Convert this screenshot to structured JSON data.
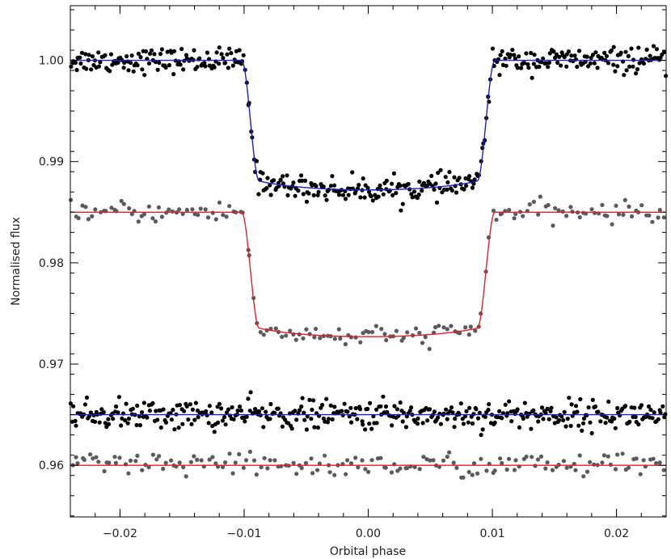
{
  "chart_data": {
    "type": "scatter",
    "title": "",
    "xlabel": "Orbital phase",
    "ylabel": "Normalised flux",
    "xlim": [
      -0.024,
      0.024
    ],
    "ylim": [
      0.9549,
      1.0054
    ],
    "grid": false,
    "legend": "none",
    "x_ticks": [
      -0.02,
      -0.01,
      0.0,
      0.01,
      0.02
    ],
    "x_tick_labels": [
      "−0.02",
      "−0.01",
      "0.00",
      "0.01",
      "0.02"
    ],
    "y_ticks": [
      0.96,
      0.97,
      0.98,
      0.99,
      1.0
    ],
    "y_tick_labels": [
      "0.96",
      "0.97",
      "0.98",
      "0.99",
      "1.00"
    ],
    "transit_model": {
      "half_width_phase": 0.0102,
      "full_depth_half_width_phase": 0.0088,
      "description_note": ""
    },
    "series": [
      {
        "kind": "light-curve",
        "baseline": 1.0,
        "depth": 0.0128,
        "scatter": 0.0006,
        "point_count": 420,
        "point_color": "#000000",
        "model_color": "#1f1fc8"
      },
      {
        "kind": "light-curve",
        "baseline": 0.985,
        "depth": 0.0123,
        "scatter": 0.0005,
        "point_count": 170,
        "point_color": "#5a5a5a",
        "model_color": "#e0202a"
      },
      {
        "kind": "residuals",
        "baseline": 0.965,
        "depth": 0.0,
        "scatter": 0.0007,
        "point_count": 420,
        "point_color": "#000000",
        "model_color": "#1f1fc8"
      },
      {
        "kind": "residuals",
        "baseline": 0.96,
        "depth": 0.0,
        "scatter": 0.0006,
        "point_count": 170,
        "point_color": "#5a5a5a",
        "model_color": "#e0202a"
      }
    ]
  }
}
